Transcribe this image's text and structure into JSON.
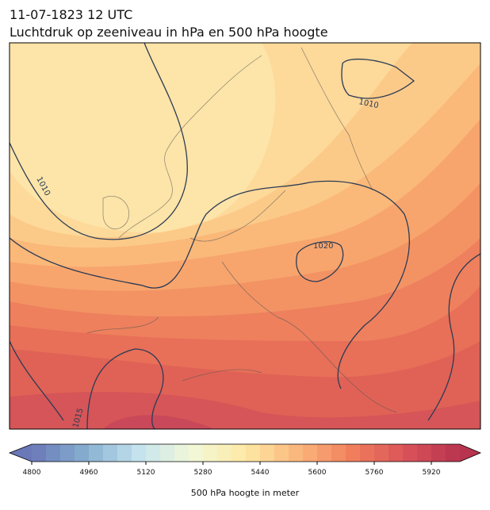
{
  "title": "11-07-1823 12 UTC",
  "subtitle": "Luchtdruk op zeeniveau in hPa en 500 hPa hoogte",
  "contour_labels": [
    "1010",
    "1010",
    "1020",
    "1015"
  ],
  "colorbar": {
    "label": "500 hPa hoogte in meter",
    "lim": [
      4800,
      6000
    ],
    "step": 40,
    "ticks": [
      4800,
      4960,
      5120,
      5280,
      5440,
      5600,
      5760,
      5920
    ],
    "colors": [
      "#6a78b8",
      "#86aed0",
      "#c4e3ee",
      "#f3f8d8",
      "#fde9a4",
      "#fbb57b",
      "#f07e5c",
      "#d9525a",
      "#b8334e"
    ]
  }
}
